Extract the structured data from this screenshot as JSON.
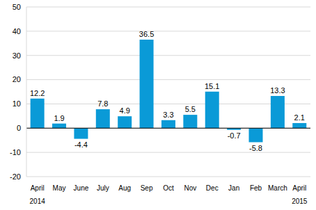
{
  "chart_data": {
    "type": "bar",
    "categories": [
      "April",
      "May",
      "June",
      "July",
      "Aug",
      "Sep",
      "Oct",
      "Nov",
      "Dec",
      "Jan",
      "Feb",
      "March",
      "April"
    ],
    "years": [
      "2014",
      null,
      null,
      null,
      null,
      null,
      null,
      null,
      null,
      null,
      null,
      null,
      "2015"
    ],
    "values": [
      12.2,
      1.9,
      -4.4,
      7.8,
      4.9,
      36.5,
      3.3,
      5.5,
      15.1,
      -0.7,
      -5.8,
      13.3,
      2.1
    ],
    "color": "#0a9ad7",
    "ylim": [
      -20,
      50
    ],
    "yticks": [
      -20,
      -10,
      0,
      10,
      20,
      30,
      40,
      50
    ],
    "grid": true,
    "data_labels": true
  }
}
